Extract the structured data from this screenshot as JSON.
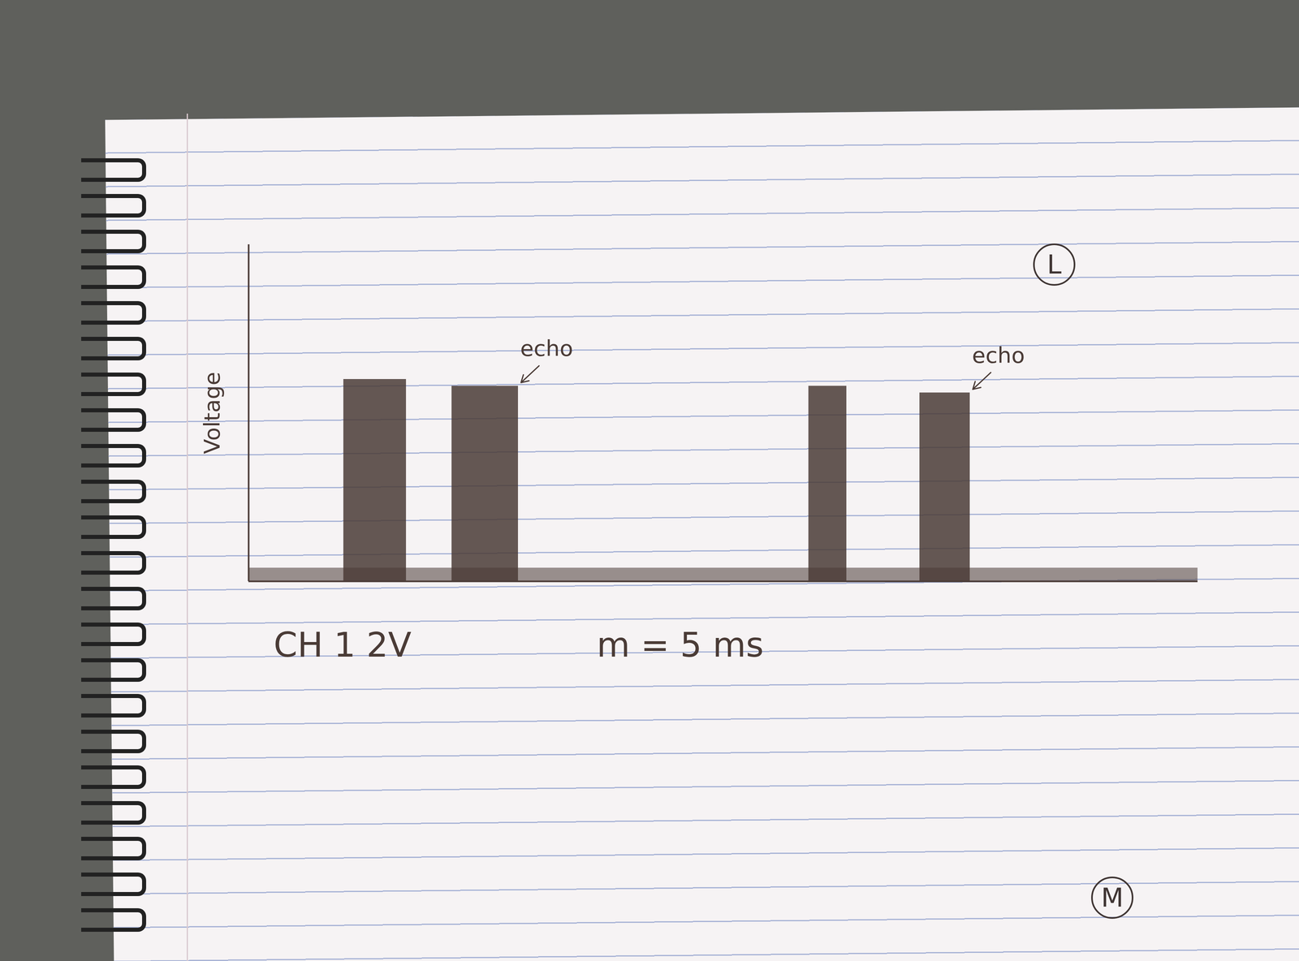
{
  "chart_data": {
    "type": "bursts",
    "y_label": "Voltage",
    "xlim": [
      0,
      100
    ],
    "ylim": [
      0,
      100
    ],
    "xticks": [],
    "yticks": [],
    "tick_labels": false,
    "color": "#4a3b36",
    "noise": 4,
    "bursts": [
      {
        "start": 10,
        "end": 16.6,
        "peak": 60
      },
      {
        "start": 21.4,
        "end": 28.4,
        "peak": 58
      },
      {
        "start": 59,
        "end": 63,
        "peak": 58
      },
      {
        "start": 70.7,
        "end": 76,
        "peak": 56
      }
    ],
    "annotations": [
      {
        "text": "echo",
        "burst": 1
      },
      {
        "text": "echo",
        "burst": 3
      }
    ],
    "channel": "CH 1 2V",
    "timebase": "m = 5 ms"
  },
  "page": {
    "labels": [
      "L",
      "M"
    ]
  }
}
